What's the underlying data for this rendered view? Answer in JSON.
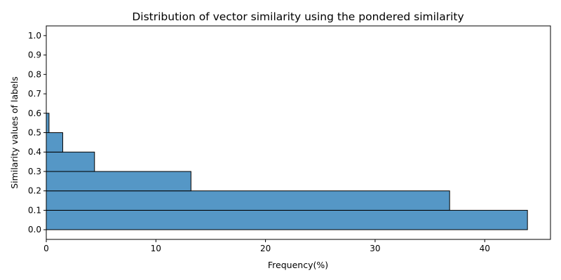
{
  "chart_data": {
    "type": "bar",
    "orientation": "horizontal",
    "title": "Distribution of vector similarity using the pondered similarity",
    "xlabel": "Frequency(%)",
    "ylabel": "Similarity values of labels",
    "bins": [
      {
        "from": 0.0,
        "to": 0.1,
        "value": 43.9
      },
      {
        "from": 0.1,
        "to": 0.2,
        "value": 36.8
      },
      {
        "from": 0.2,
        "to": 0.3,
        "value": 13.2
      },
      {
        "from": 0.3,
        "to": 0.4,
        "value": 4.4
      },
      {
        "from": 0.4,
        "to": 0.5,
        "value": 1.5
      },
      {
        "from": 0.5,
        "to": 0.6,
        "value": 0.25
      }
    ],
    "xlim": [
      0,
      46
    ],
    "ylim": [
      -0.05,
      1.05
    ],
    "xticks": [
      0,
      10,
      20,
      30,
      40
    ],
    "yticks": [
      "0.0",
      "0.1",
      "0.2",
      "0.3",
      "0.4",
      "0.5",
      "0.6",
      "0.7",
      "0.8",
      "0.9",
      "1.0"
    ],
    "grid": false,
    "bar_color": "#5597c6",
    "edge_color": "#000000"
  }
}
